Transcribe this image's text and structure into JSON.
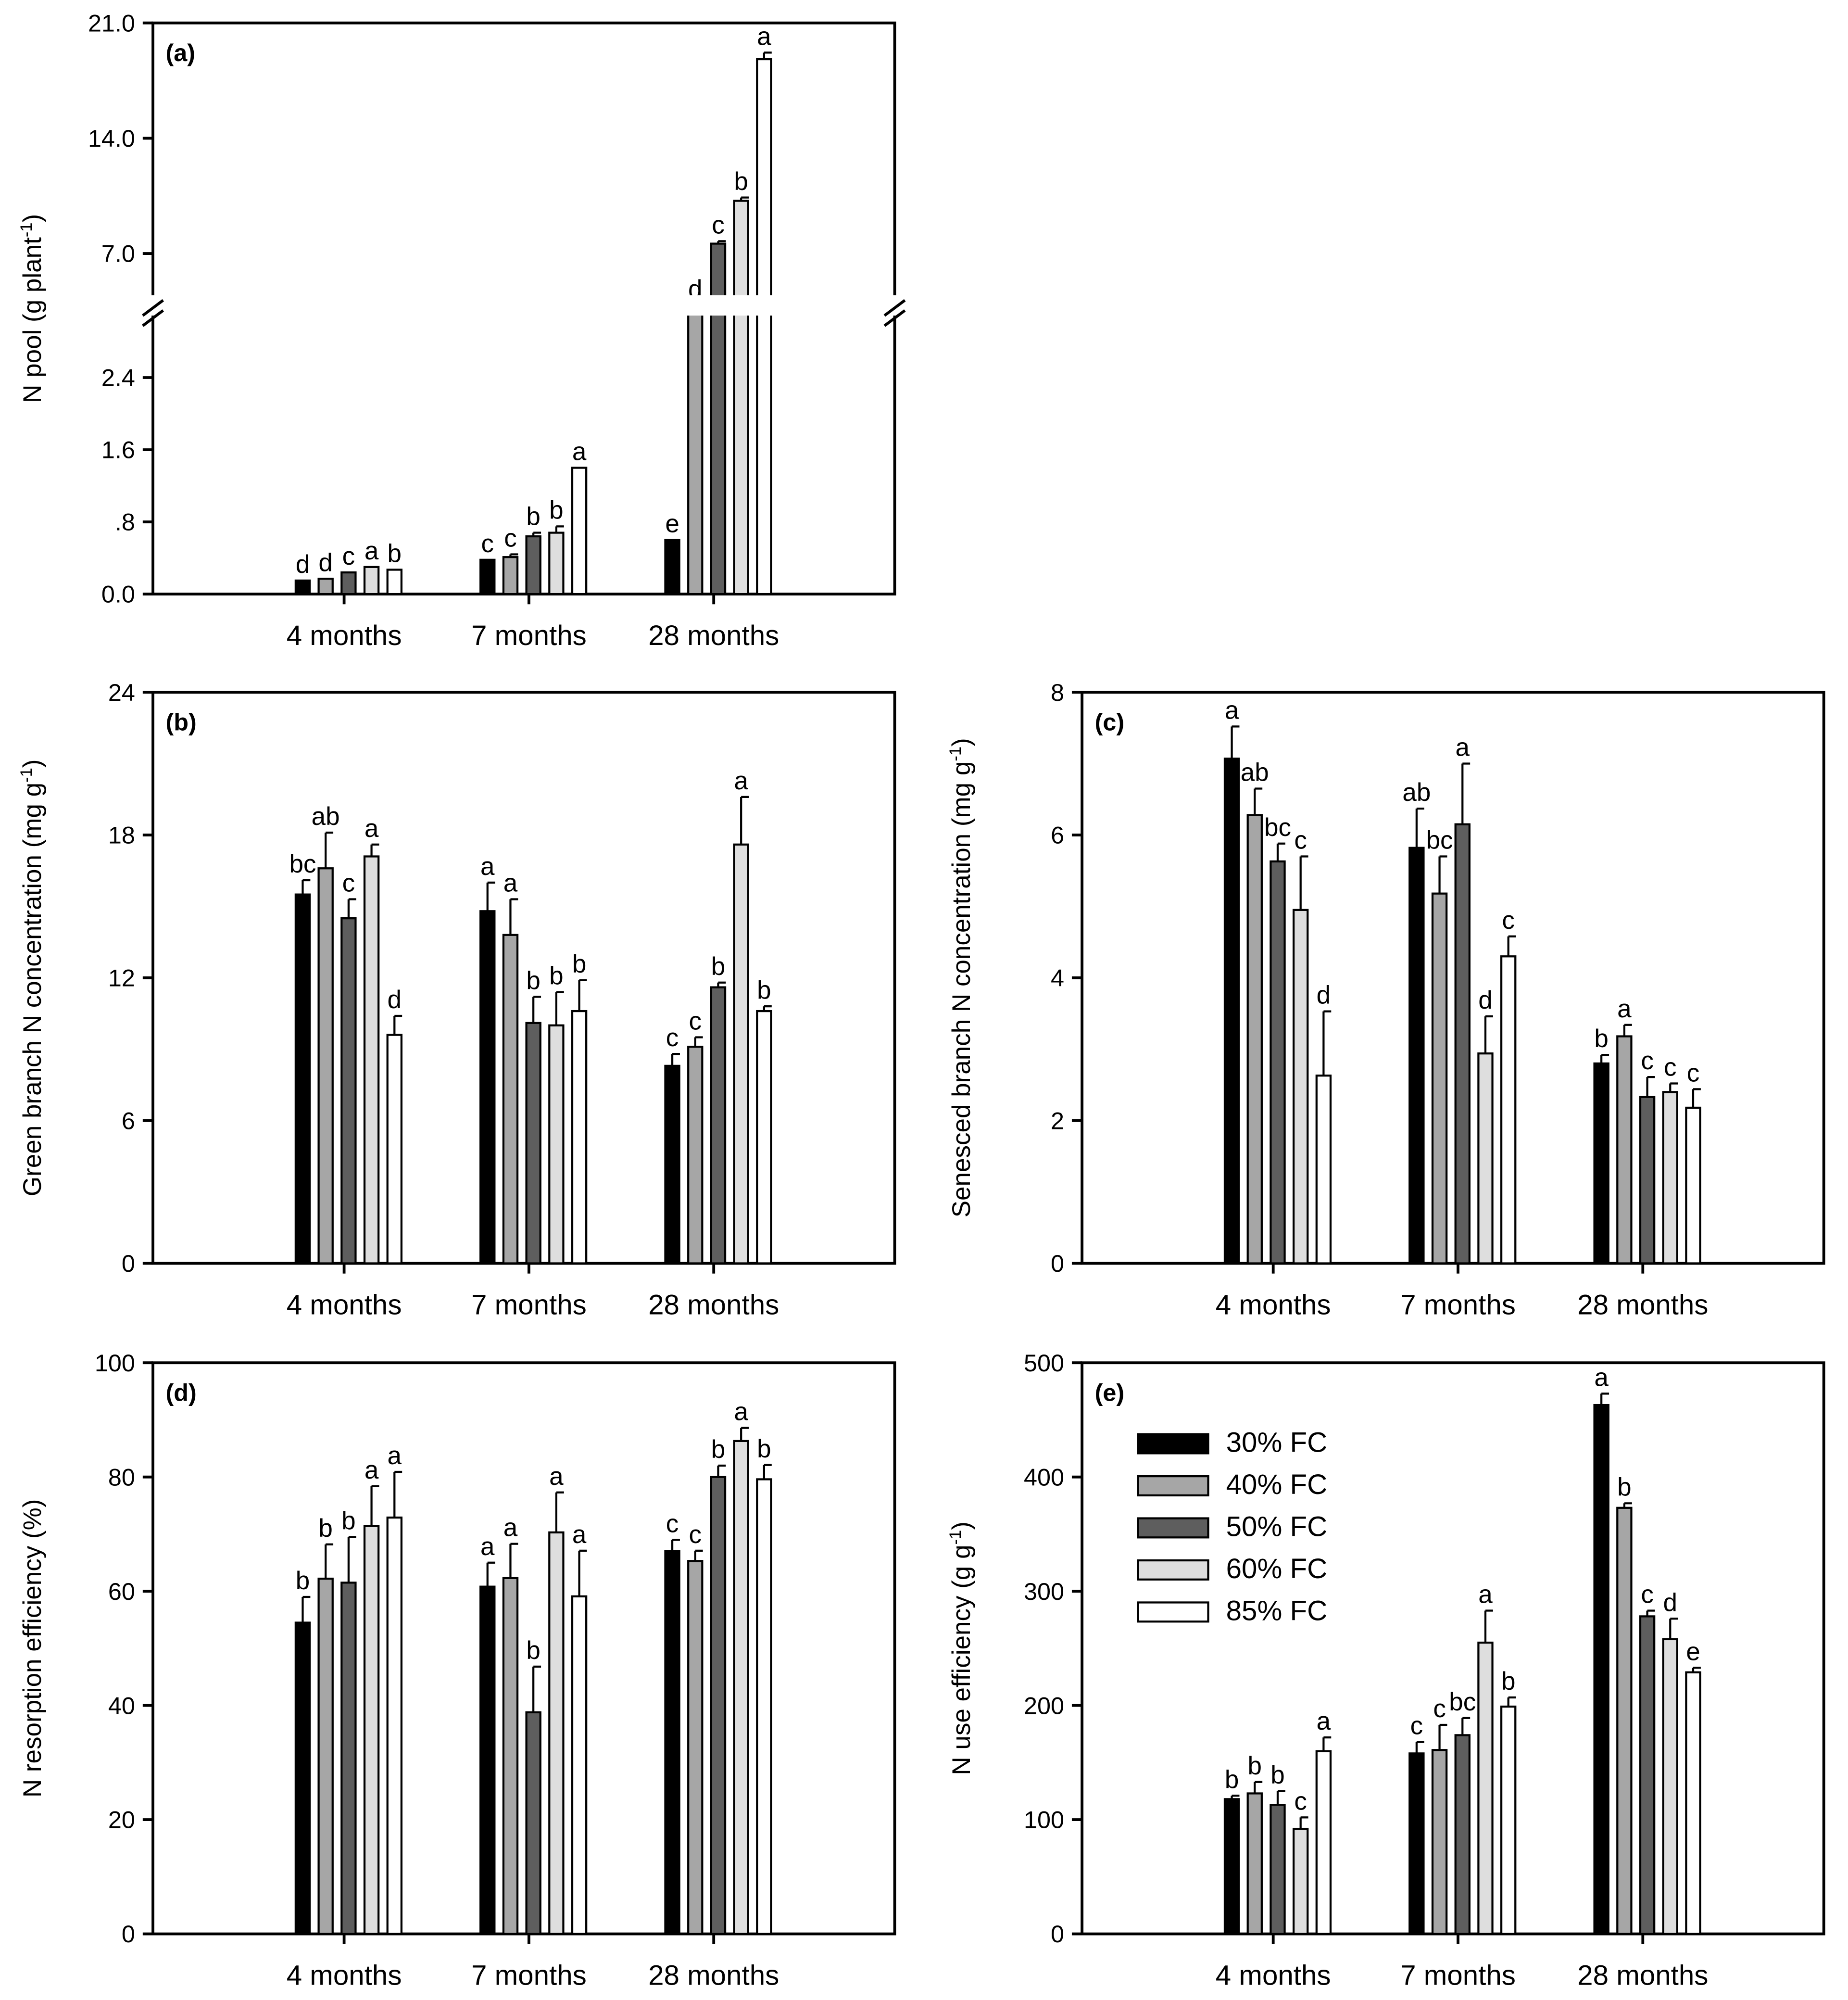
{
  "legend": {
    "placement": "upper-left inside panel (e)",
    "entries": [
      {
        "label": "30% FC",
        "color": "#000000"
      },
      {
        "label": "40% FC",
        "color": "#a6a6a6"
      },
      {
        "label": "50% FC",
        "color": "#5e5e5e"
      },
      {
        "label": "60% FC",
        "color": "#dedede"
      },
      {
        "label": "85% FC",
        "color": "#ffffff"
      }
    ]
  },
  "chart_data": [
    {
      "type": "bar",
      "panel": "(a)",
      "ylabel": "N pool (g plant",
      "ylabel_sup": "-1",
      "ylabel_tail": ")",
      "axis_break": true,
      "ylim_lower": [
        0,
        2.9
      ],
      "ylim_upper": [
        5.5,
        21.0
      ],
      "yticks_lower": [
        0,
        0.8,
        1.6,
        2.4
      ],
      "yticks_upper": [
        7.0,
        14.0,
        21.0
      ],
      "ytick_labels_lower": [
        "0.0",
        ".8",
        "1.6",
        "2.4"
      ],
      "ytick_labels_upper": [
        "7.0",
        "14.0",
        "21.0"
      ],
      "categories": [
        "4 months",
        "7 months",
        "28 months"
      ],
      "series": [
        {
          "name": "30% FC",
          "values": [
            0.15,
            0.38,
            0.6
          ],
          "errors": [
            0.0,
            0.0,
            0.0
          ],
          "letters": [
            "d",
            "c",
            "e"
          ]
        },
        {
          "name": "40% FC",
          "values": [
            0.17,
            0.41,
            4.8
          ],
          "errors": [
            0.0,
            0.03,
            0.0
          ],
          "letters": [
            "d",
            "c",
            "d"
          ]
        },
        {
          "name": "50% FC",
          "values": [
            0.24,
            0.64,
            7.6
          ],
          "errors": [
            0.0,
            0.04,
            0.15
          ],
          "letters": [
            "c",
            "b",
            "c"
          ]
        },
        {
          "name": "60% FC",
          "values": [
            0.3,
            0.68,
            10.2
          ],
          "errors": [
            0.0,
            0.07,
            0.2
          ],
          "letters": [
            "a",
            "b",
            "b"
          ]
        },
        {
          "name": "85% FC",
          "values": [
            0.27,
            1.4,
            18.8
          ],
          "errors": [
            0.0,
            0.0,
            0.4
          ],
          "letters": [
            "b",
            "a",
            "a"
          ]
        }
      ]
    },
    {
      "type": "bar",
      "panel": "(b)",
      "ylabel": "Green branch N concentration (mg g",
      "ylabel_sup": "-1",
      "ylabel_tail": ")",
      "ylim": [
        0,
        24
      ],
      "yticks": [
        0,
        6,
        12,
        18,
        24
      ],
      "categories": [
        "4 months",
        "7 months",
        "28 months"
      ],
      "series": [
        {
          "name": "30% FC",
          "values": [
            15.5,
            14.8,
            8.3
          ],
          "errors": [
            0.6,
            1.2,
            0.5
          ],
          "letters": [
            "bc",
            "a",
            "c"
          ]
        },
        {
          "name": "40% FC",
          "values": [
            16.6,
            13.8,
            9.1
          ],
          "errors": [
            1.5,
            1.5,
            0.4
          ],
          "letters": [
            "ab",
            "a",
            "c"
          ]
        },
        {
          "name": "50% FC",
          "values": [
            14.5,
            10.1,
            11.6
          ],
          "errors": [
            0.8,
            1.1,
            0.2
          ],
          "letters": [
            "c",
            "b",
            "b"
          ]
        },
        {
          "name": "60% FC",
          "values": [
            17.1,
            10.0,
            17.6
          ],
          "errors": [
            0.5,
            1.4,
            2.0
          ],
          "letters": [
            "a",
            "b",
            "a"
          ]
        },
        {
          "name": "85% FC",
          "values": [
            9.6,
            10.6,
            10.6
          ],
          "errors": [
            0.8,
            1.3,
            0.2
          ],
          "letters": [
            "d",
            "b",
            "b"
          ]
        }
      ]
    },
    {
      "type": "bar",
      "panel": "(c)",
      "ylabel": "Senesced branch N concentration (mg g",
      "ylabel_sup": "-1",
      "ylabel_tail": ")",
      "ylim": [
        0,
        8
      ],
      "yticks": [
        0,
        2,
        4,
        6,
        8
      ],
      "categories": [
        "4 months",
        "7 months",
        "28 months"
      ],
      "series": [
        {
          "name": "30% FC",
          "values": [
            7.07,
            5.82,
            2.8
          ],
          "errors": [
            0.45,
            0.55,
            0.12
          ],
          "letters": [
            "a",
            "ab",
            "b"
          ]
        },
        {
          "name": "40% FC",
          "values": [
            6.28,
            5.18,
            3.18
          ],
          "errors": [
            0.37,
            0.52,
            0.16
          ],
          "letters": [
            "ab",
            "bc",
            "a"
          ]
        },
        {
          "name": "50% FC",
          "values": [
            5.63,
            6.15,
            2.33
          ],
          "errors": [
            0.25,
            0.85,
            0.28
          ],
          "letters": [
            "bc",
            "a",
            "c"
          ]
        },
        {
          "name": "60% FC",
          "values": [
            4.95,
            2.94,
            2.4
          ],
          "errors": [
            0.75,
            0.52,
            0.12
          ],
          "letters": [
            "c",
            "d",
            "c"
          ]
        },
        {
          "name": "85% FC",
          "values": [
            2.63,
            4.3,
            2.18
          ],
          "errors": [
            0.9,
            0.28,
            0.26
          ],
          "letters": [
            "d",
            "c",
            "c"
          ]
        }
      ]
    },
    {
      "type": "bar",
      "panel": "(d)",
      "ylabel": "N resorption efficiency (%)",
      "ylim": [
        0,
        100
      ],
      "yticks": [
        0,
        20,
        40,
        60,
        80,
        100
      ],
      "categories": [
        "4 months",
        "7 months",
        "28 months"
      ],
      "series": [
        {
          "name": "30% FC",
          "values": [
            54.5,
            60.8,
            67.0
          ],
          "errors": [
            4.5,
            4.2,
            2.0
          ],
          "letters": [
            "b",
            "a",
            "c"
          ]
        },
        {
          "name": "40% FC",
          "values": [
            62.2,
            62.3,
            65.3
          ],
          "errors": [
            6.0,
            6.0,
            1.8
          ],
          "letters": [
            "b",
            "a",
            "c"
          ]
        },
        {
          "name": "50% FC",
          "values": [
            61.5,
            38.8,
            80.0
          ],
          "errors": [
            8.0,
            8.0,
            2.0
          ],
          "letters": [
            "b",
            "b",
            "b"
          ]
        },
        {
          "name": "60% FC",
          "values": [
            71.4,
            70.3,
            86.3
          ],
          "errors": [
            7.0,
            7.0,
            2.3
          ],
          "letters": [
            "a",
            "a",
            "a"
          ]
        },
        {
          "name": "85% FC",
          "values": [
            72.9,
            59.1,
            79.6
          ],
          "errors": [
            8.0,
            8.0,
            2.5
          ],
          "letters": [
            "a",
            "a",
            "b"
          ]
        }
      ]
    },
    {
      "type": "bar",
      "panel": "(e)",
      "ylabel": "N use efficiency (g g",
      "ylabel_sup": "-1",
      "ylabel_tail": ")",
      "ylim": [
        0,
        500
      ],
      "yticks": [
        0,
        100,
        200,
        300,
        400,
        500
      ],
      "categories": [
        "4 months",
        "7 months",
        "28 months"
      ],
      "series": [
        {
          "name": "30% FC",
          "values": [
            118,
            158,
            463
          ],
          "errors": [
            3,
            10,
            10
          ],
          "letters": [
            "b",
            "c",
            "a"
          ]
        },
        {
          "name": "40% FC",
          "values": [
            123,
            161,
            373
          ],
          "errors": [
            10,
            22,
            4
          ],
          "letters": [
            "b",
            "c",
            "b"
          ]
        },
        {
          "name": "50% FC",
          "values": [
            113,
            174,
            278
          ],
          "errors": [
            12,
            15,
            5
          ],
          "letters": [
            "b",
            "bc",
            "c"
          ]
        },
        {
          "name": "60% FC",
          "values": [
            92,
            255,
            258
          ],
          "errors": [
            10,
            28,
            18
          ],
          "letters": [
            "c",
            "a",
            "d"
          ]
        },
        {
          "name": "85% FC",
          "values": [
            160,
            199,
            229
          ],
          "errors": [
            12,
            8,
            4
          ],
          "letters": [
            "a",
            "b",
            "e"
          ]
        }
      ]
    }
  ]
}
